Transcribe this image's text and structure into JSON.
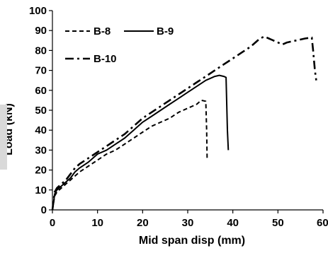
{
  "chart_data": {
    "type": "line",
    "xlabel": "Mid span disp (mm)",
    "ylabel": "Load (kN)",
    "xlim": [
      0,
      60
    ],
    "ylim": [
      0,
      100
    ],
    "x_ticks": [
      "0",
      "10",
      "20",
      "30",
      "40",
      "50",
      "60"
    ],
    "y_ticks": [
      "0",
      "10",
      "20",
      "30",
      "40",
      "50",
      "60",
      "70",
      "80",
      "90",
      "100"
    ],
    "grid": false,
    "legend_position": "top-left",
    "series": [
      {
        "name": "B-8",
        "line_style": "dashed",
        "color": "#000000",
        "points": [
          [
            0,
            0
          ],
          [
            0.5,
            7
          ],
          [
            1,
            9
          ],
          [
            2,
            11
          ],
          [
            3,
            13
          ],
          [
            4,
            15
          ],
          [
            5,
            17
          ],
          [
            6,
            19
          ],
          [
            8,
            22
          ],
          [
            10,
            25
          ],
          [
            12,
            28
          ],
          [
            14,
            30
          ],
          [
            16,
            33
          ],
          [
            18,
            36
          ],
          [
            20,
            39
          ],
          [
            22,
            42
          ],
          [
            24,
            44
          ],
          [
            26,
            46
          ],
          [
            28,
            49
          ],
          [
            30,
            51
          ],
          [
            32,
            53
          ],
          [
            33,
            55
          ],
          [
            34,
            54.5
          ],
          [
            34.2,
            40
          ],
          [
            34.3,
            25
          ]
        ]
      },
      {
        "name": "B-9",
        "line_style": "solid",
        "color": "#000000",
        "points": [
          [
            0,
            0
          ],
          [
            0.5,
            8
          ],
          [
            1,
            10
          ],
          [
            2,
            12
          ],
          [
            3,
            14
          ],
          [
            4,
            16
          ],
          [
            5,
            19
          ],
          [
            6,
            21
          ],
          [
            8,
            24
          ],
          [
            10,
            28
          ],
          [
            12,
            30
          ],
          [
            14,
            33
          ],
          [
            16,
            36
          ],
          [
            18,
            40
          ],
          [
            20,
            44
          ],
          [
            22,
            47
          ],
          [
            24,
            50
          ],
          [
            26,
            53
          ],
          [
            28,
            56
          ],
          [
            30,
            59
          ],
          [
            32,
            62
          ],
          [
            34,
            65
          ],
          [
            35,
            66
          ],
          [
            36,
            67
          ],
          [
            37,
            67.5
          ],
          [
            38,
            67
          ],
          [
            38.5,
            66.5
          ],
          [
            38.8,
            40
          ],
          [
            39,
            30
          ]
        ]
      },
      {
        "name": "B-10",
        "line_style": "dash-dot",
        "color": "#000000",
        "points": [
          [
            0,
            0
          ],
          [
            0.5,
            9
          ],
          [
            1,
            11
          ],
          [
            2,
            13
          ],
          [
            3,
            15
          ],
          [
            4,
            18
          ],
          [
            5,
            21
          ],
          [
            6,
            23
          ],
          [
            8,
            26
          ],
          [
            10,
            29
          ],
          [
            12,
            32
          ],
          [
            14,
            35
          ],
          [
            16,
            38
          ],
          [
            18,
            42
          ],
          [
            20,
            46
          ],
          [
            22,
            49
          ],
          [
            24,
            52
          ],
          [
            26,
            55
          ],
          [
            28,
            58
          ],
          [
            30,
            61
          ],
          [
            32,
            64
          ],
          [
            34,
            67
          ],
          [
            36,
            70
          ],
          [
            38,
            73
          ],
          [
            40,
            76
          ],
          [
            42,
            79
          ],
          [
            44,
            82
          ],
          [
            45,
            84
          ],
          [
            46,
            86
          ],
          [
            47,
            87
          ],
          [
            48,
            86
          ],
          [
            49,
            85
          ],
          [
            50,
            84
          ],
          [
            51,
            83
          ],
          [
            52,
            84
          ],
          [
            54,
            85
          ],
          [
            56,
            86
          ],
          [
            57.5,
            86.5
          ],
          [
            57.8,
            80
          ],
          [
            58.2,
            70
          ],
          [
            58.5,
            65
          ]
        ]
      }
    ]
  }
}
